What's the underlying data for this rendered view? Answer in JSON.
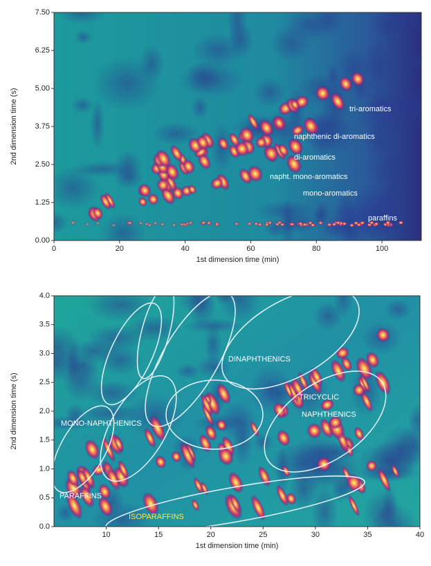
{
  "chart_data": [
    {
      "type": "heatmap",
      "xlabel": "1st dimension time (min)",
      "ylabel": "2nd dimension time (s)",
      "xlim": [
        0,
        112
      ],
      "xticks": [
        0,
        20,
        40,
        60,
        80,
        100
      ],
      "ylim": [
        0,
        7.5
      ],
      "yticks": [
        {
          "value": 0,
          "label": "0.00"
        },
        1.25,
        {
          "value": 2.5,
          "label": "2.50"
        },
        3.75,
        {
          "value": 5,
          "label": "5.00"
        },
        6.25,
        {
          "value": 7.5,
          "label": "7.50"
        }
      ],
      "annotations": [
        "tri-aromatics",
        "naphthenic di-aromatics",
        "di-aromatics",
        "napht. mono-aromatics",
        "mono-aromatics",
        "paraffins"
      ]
    },
    {
      "type": "heatmap",
      "xlabel": "1st dimension time (min)",
      "ylabel": "2nd dimension time (s)",
      "xlim": [
        5,
        40
      ],
      "xticks": [
        10,
        15,
        20,
        25,
        30,
        35,
        40
      ],
      "ylim": [
        0,
        4
      ],
      "yticks": [
        {
          "value": 0,
          "label": "0.0"
        },
        0.5,
        {
          "value": 1,
          "label": "1.0"
        },
        1.5,
        {
          "value": 2,
          "label": "2.0"
        },
        2.5,
        {
          "value": 3,
          "label": "3.0"
        },
        3.5,
        {
          "value": 4,
          "label": "4.0"
        }
      ],
      "annotations": [
        "DINAPHTHENICS",
        "MONO-NAPHTHENICS",
        "PARAFFINS",
        "TRICYCLIC",
        "NAPHTHENICS",
        "ISOPARAFFINS"
      ]
    }
  ]
}
